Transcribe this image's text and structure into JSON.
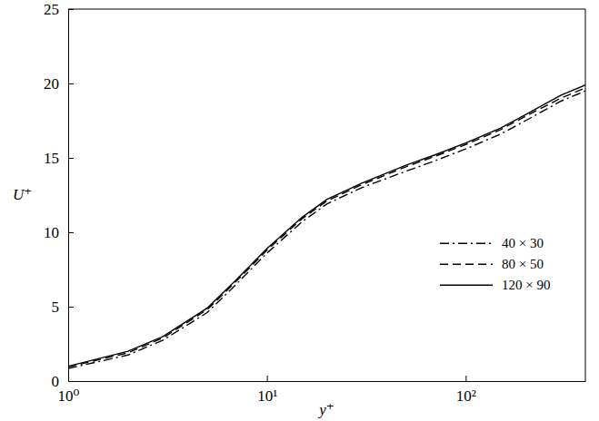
{
  "chart_data": {
    "type": "line",
    "x_label": "y⁺",
    "y_label": "U⁺",
    "log": "x",
    "grid": false,
    "legend": "right",
    "xlim": [
      1,
      400
    ],
    "ylim": [
      0,
      25
    ],
    "xticks": [
      {
        "value": 1,
        "label": "10⁰"
      },
      {
        "value": 10,
        "label": "10¹"
      },
      {
        "value": 100,
        "label": "10²"
      }
    ],
    "yticks": [
      0,
      5,
      10,
      15,
      20,
      25
    ],
    "x": [
      1,
      2,
      3,
      5,
      7,
      10,
      15,
      20,
      30,
      50,
      70,
      100,
      150,
      200,
      300,
      400
    ],
    "series": [
      {
        "name": "40 × 30",
        "color": "#000000",
        "line_style": "dash-dot",
        "values": [
          0.85,
          1.75,
          2.75,
          4.6,
          6.5,
          8.6,
          10.7,
          11.9,
          13.0,
          14.1,
          14.8,
          15.6,
          16.6,
          17.5,
          18.8,
          19.5
        ]
      },
      {
        "name": "80 × 50",
        "color": "#000000",
        "line_style": "dashed",
        "values": [
          0.95,
          1.9,
          2.9,
          4.8,
          6.7,
          8.8,
          10.9,
          12.1,
          13.2,
          14.4,
          15.1,
          15.9,
          16.9,
          17.8,
          19.0,
          19.7
        ]
      },
      {
        "name": "120 × 90",
        "color": "#000000",
        "line_style": "solid",
        "values": [
          1.0,
          2.0,
          3.0,
          4.9,
          6.8,
          8.9,
          11.0,
          12.2,
          13.3,
          14.5,
          15.2,
          16.0,
          17.0,
          17.9,
          19.2,
          19.9
        ]
      }
    ]
  }
}
